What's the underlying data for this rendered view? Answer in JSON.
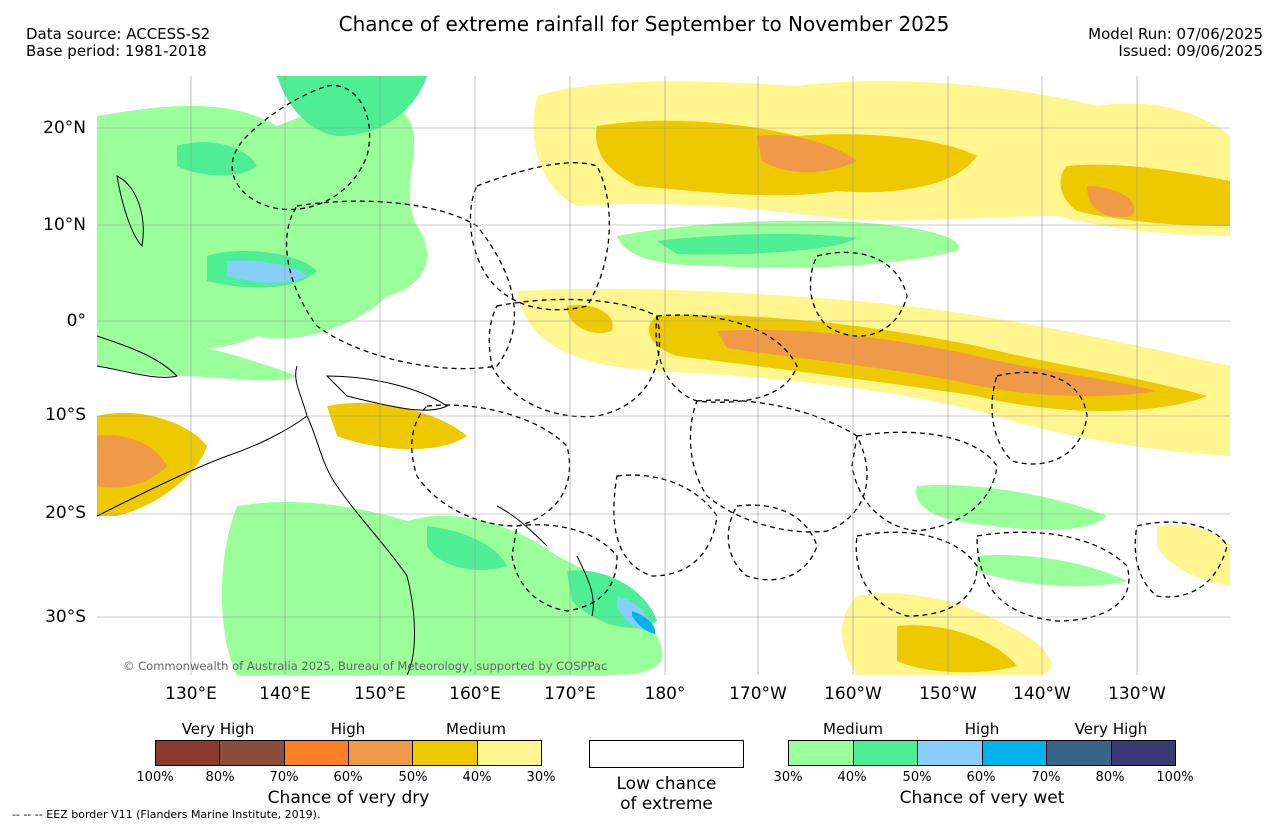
{
  "header": {
    "title": "Chance of extreme rainfall for September to November 2025",
    "data_source": "Data source: ACCESS-S2",
    "base_period": "Base period: 1981-2018",
    "model_run": "Model Run: 07/06/2025",
    "issued": "Issued: 09/06/2025"
  },
  "map": {
    "lat_labels": [
      "20°N",
      "10°N",
      "0°",
      "10°S",
      "20°S",
      "30°S"
    ],
    "lon_labels": [
      "130°E",
      "140°E",
      "150°E",
      "160°E",
      "170°E",
      "180°",
      "170°W",
      "160°W",
      "150°W",
      "140°W",
      "130°W"
    ],
    "credit": "© Commonwealth of Australia 2025, Bureau of Meteorology, supported by COSPPac",
    "colors": {
      "dry_medium_light": "#fff68f",
      "dry_medium": "#eec900",
      "dry_high": "#ee9a49",
      "dry_high_strong": "#ff7f24",
      "wet_medium": "#9aff9a",
      "wet_medium_strong": "#4eee94",
      "wet_high": "#87cefa",
      "wet_high_strong": "#00b2ee"
    }
  },
  "legend": {
    "dry": {
      "categories": [
        "Very High",
        "High",
        "Medium"
      ],
      "percentages": [
        "100%",
        "80%",
        "70%",
        "60%",
        "50%",
        "40%",
        "30%"
      ],
      "colors": [
        "#8b3a2e",
        "#8b4c39",
        "#ff7f24",
        "#ee9a49",
        "#eec900",
        "#fff68f"
      ],
      "caption": "Chance of very dry"
    },
    "low": {
      "caption_line1": "Low chance",
      "caption_line2": "of extreme"
    },
    "wet": {
      "categories": [
        "Medium",
        "High",
        "Very High"
      ],
      "percentages": [
        "30%",
        "40%",
        "50%",
        "60%",
        "70%",
        "80%",
        "100%"
      ],
      "colors": [
        "#9aff9a",
        "#4eee94",
        "#87cefa",
        "#00b2ee",
        "#36648b",
        "#3a3a75"
      ],
      "caption": "Chance of very wet"
    }
  },
  "footer": {
    "eez_note": "-- -- -- EEZ border V11 (Flanders Marine Institute, 2019)."
  }
}
